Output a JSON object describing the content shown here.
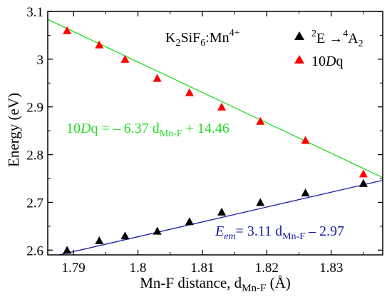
{
  "chart_data": {
    "type": "scatter",
    "title": "",
    "inset_label": {
      "base": "K",
      "sub1": "2",
      "mid": "SiF",
      "sub2": "6",
      "tail": ":Mn",
      "sup": "4+"
    },
    "xlabel": {
      "text": "Mn-F distance, d",
      "sub": "Mn-F",
      "unit": " (Å)"
    },
    "ylabel": "Energy (eV)",
    "xlim": [
      1.786,
      1.838
    ],
    "ylim": [
      2.59,
      3.1
    ],
    "x_ticks": [
      1.79,
      1.8,
      1.81,
      1.82,
      1.83
    ],
    "x_tick_labels": [
      "1.79",
      "1.8",
      "1.81",
      "1.82",
      "1.83"
    ],
    "y_ticks": [
      2.6,
      2.7,
      2.8,
      2.9,
      3.0,
      3.1
    ],
    "y_tick_labels": [
      "2.6",
      "2.7",
      "2.8",
      "2.9",
      "3",
      "3.1"
    ],
    "grid": false,
    "legend_position": "top-right",
    "series": [
      {
        "key": "em",
        "legend": {
          "sup1": "2",
          "a": "E ",
          "arrow": "→",
          "sup2": "4",
          "b": "A",
          "sub": "2"
        },
        "marker": "triangle",
        "color": "#000000",
        "x": [
          1.789,
          1.794,
          1.798,
          1.803,
          1.808,
          1.813,
          1.819,
          1.826,
          1.835
        ],
        "y": [
          2.6,
          2.62,
          2.63,
          2.64,
          2.66,
          2.68,
          2.7,
          2.72,
          2.74
        ],
        "fit": {
          "slope": 3.11,
          "intercept": -2.97,
          "color": "#1a1aa6"
        }
      },
      {
        "key": "dq",
        "legend": {
          "a": "10",
          "i": "D",
          "b": "q"
        },
        "marker": "triangle",
        "color": "#ff0000",
        "x": [
          1.789,
          1.794,
          1.798,
          1.803,
          1.808,
          1.813,
          1.819,
          1.826,
          1.835
        ],
        "y": [
          3.06,
          3.03,
          3.0,
          2.96,
          2.93,
          2.9,
          2.87,
          2.83,
          2.76
        ],
        "fit": {
          "slope": -6.37,
          "intercept": 14.46,
          "color": "#22dd22"
        }
      }
    ],
    "annotations": {
      "dq_eq": {
        "a": "10",
        "i": "D",
        "b": "q = – 6.37 d",
        "sub": "Mn-F",
        "c": " + 14.46",
        "color": "#22dd22"
      },
      "em_eq": {
        "i": "E",
        "isub": "em",
        "b": "= 3.11 d",
        "sub": "Mn-F",
        "c": " – 2.97",
        "color": "#1a1aa6"
      }
    }
  }
}
